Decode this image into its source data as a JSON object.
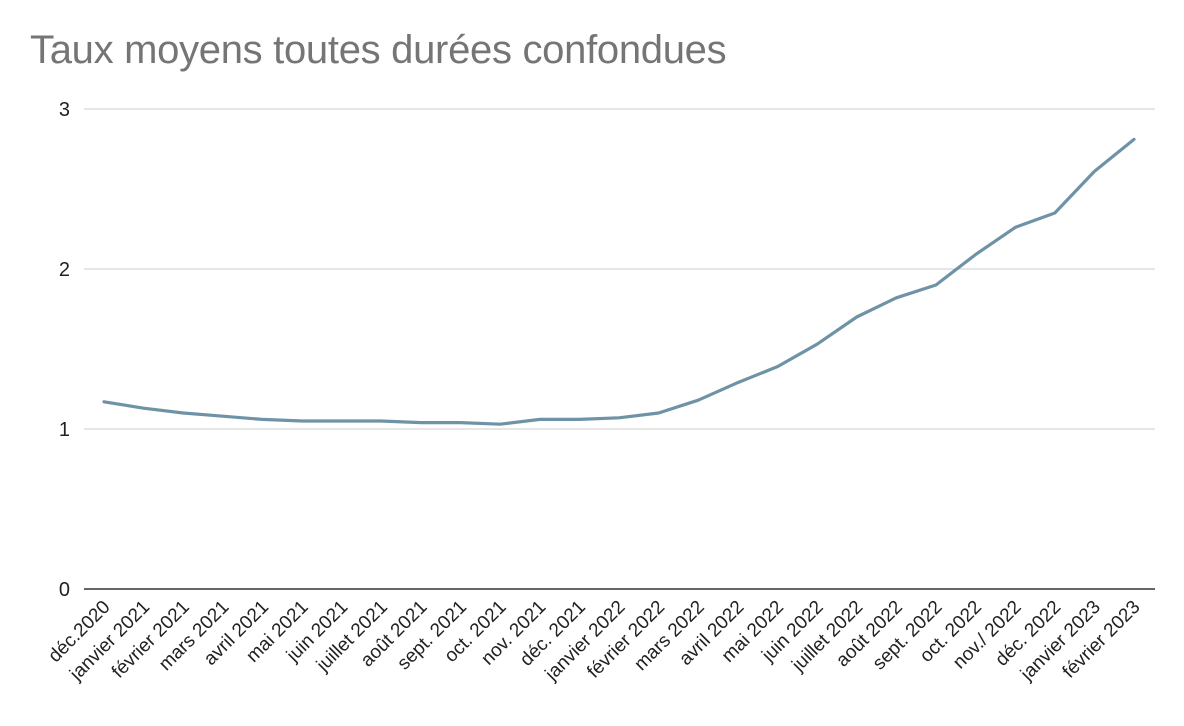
{
  "chart_data": {
    "type": "line",
    "title": "Taux moyens toutes durées confondues",
    "xlabel": "",
    "ylabel": "",
    "ylim": [
      0,
      3
    ],
    "yticks": [
      "0",
      "1",
      "2",
      "3"
    ],
    "grid": true,
    "legend": "none",
    "line_color": "#6f93a6",
    "categories": [
      "déc.2020",
      "janvier 2021",
      "février 2021",
      "mars 2021",
      "avril 2021",
      "mai 2021",
      "juin 2021",
      "juillet 2021",
      "août 2021",
      "sept. 2021",
      "oct. 2021",
      "nov. 2021",
      "déc. 2021",
      "janvier 2022",
      "février 2022",
      "mars 2022",
      "avril 2022",
      "mai 2022",
      "juin 2022",
      "juillet 2022",
      "août 2022",
      "sept. 2022",
      "oct. 2022",
      "nov./ 2022",
      "déc. 2022",
      "janvier 2023",
      "février 2023"
    ],
    "series": [
      {
        "values": [
          1.17,
          1.13,
          1.1,
          1.08,
          1.06,
          1.05,
          1.05,
          1.05,
          1.04,
          1.04,
          1.03,
          1.06,
          1.06,
          1.07,
          1.1,
          1.18,
          1.29,
          1.39,
          1.53,
          1.7,
          1.82,
          1.9,
          2.09,
          2.26,
          2.35,
          2.61,
          2.81
        ]
      }
    ]
  }
}
